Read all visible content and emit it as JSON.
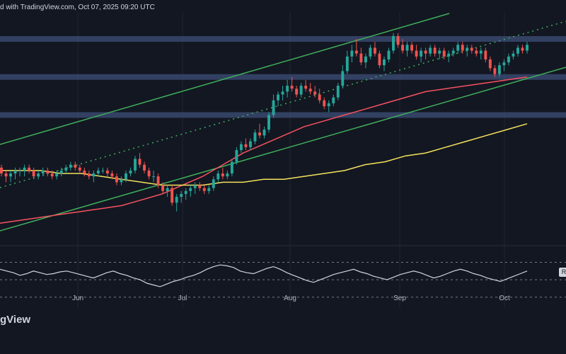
{
  "header": {
    "text": "d with TradingView.com, Oct 07, 2025 09:20 UTC"
  },
  "footer": {
    "brand": "gView"
  },
  "rsi_tag": "R",
  "chart_data": {
    "type": "candlestick",
    "x_ticks": [
      "Jun",
      "Jul",
      "Aug",
      "Sep",
      "Oct"
    ],
    "price_scale": "unlabeled",
    "bull_color": "#26a69a",
    "bear_color": "#ef5350",
    "candles": [
      [
        85,
        86,
        82,
        83
      ],
      [
        83,
        84,
        80,
        82
      ],
      [
        82,
        84,
        80,
        83
      ],
      [
        83,
        85,
        81,
        84
      ],
      [
        84,
        85,
        82,
        84
      ],
      [
        84,
        86,
        82,
        85
      ],
      [
        85,
        86,
        83,
        84
      ],
      [
        84,
        85,
        81,
        82
      ],
      [
        82,
        84,
        81,
        83
      ],
      [
        83,
        85,
        82,
        84
      ],
      [
        84,
        85,
        82,
        83
      ],
      [
        83,
        84,
        81,
        82
      ],
      [
        82,
        84,
        81,
        83
      ],
      [
        83,
        85,
        82,
        84
      ],
      [
        84,
        86,
        83,
        85
      ],
      [
        85,
        87,
        84,
        86
      ],
      [
        86,
        87,
        84,
        85
      ],
      [
        85,
        86,
        83,
        84
      ],
      [
        84,
        85,
        82,
        83
      ],
      [
        83,
        84,
        81,
        82
      ],
      [
        82,
        84,
        80,
        83
      ],
      [
        83,
        85,
        82,
        84
      ],
      [
        84,
        85,
        83,
        84
      ],
      [
        84,
        85,
        82,
        83
      ],
      [
        83,
        84,
        81,
        82
      ],
      [
        82,
        83,
        79,
        80
      ],
      [
        80,
        82,
        79,
        81
      ],
      [
        81,
        84,
        80,
        83
      ],
      [
        83,
        85,
        82,
        84
      ],
      [
        84,
        89,
        83,
        88
      ],
      [
        88,
        90,
        85,
        86
      ],
      [
        86,
        87,
        83,
        84
      ],
      [
        84,
        85,
        81,
        82
      ],
      [
        82,
        84,
        80,
        82
      ],
      [
        82,
        83,
        78,
        79
      ],
      [
        79,
        80,
        76,
        77
      ],
      [
        77,
        79,
        75,
        78
      ],
      [
        78,
        79,
        72,
        73
      ],
      [
        73,
        76,
        70,
        75
      ],
      [
        75,
        77,
        73,
        76
      ],
      [
        76,
        78,
        74,
        77
      ],
      [
        77,
        79,
        75,
        78
      ],
      [
        78,
        80,
        76,
        79
      ],
      [
        79,
        80,
        77,
        78
      ],
      [
        78,
        79,
        76,
        77
      ],
      [
        77,
        79,
        76,
        78
      ],
      [
        78,
        82,
        77,
        81
      ],
      [
        81,
        84,
        80,
        83
      ],
      [
        83,
        85,
        81,
        82
      ],
      [
        82,
        84,
        81,
        83
      ],
      [
        83,
        88,
        82,
        87
      ],
      [
        87,
        92,
        86,
        91
      ],
      [
        91,
        94,
        90,
        93
      ],
      [
        93,
        95,
        91,
        92
      ],
      [
        92,
        95,
        91,
        94
      ],
      [
        94,
        98,
        93,
        97
      ],
      [
        97,
        100,
        95,
        96
      ],
      [
        96,
        99,
        95,
        98
      ],
      [
        98,
        104,
        97,
        103
      ],
      [
        103,
        110,
        102,
        108
      ],
      [
        108,
        111,
        106,
        110
      ],
      [
        110,
        113,
        108,
        111
      ],
      [
        111,
        115,
        109,
        113
      ],
      [
        113,
        116,
        111,
        112
      ],
      [
        112,
        113,
        109,
        110
      ],
      [
        110,
        114,
        109,
        113
      ],
      [
        113,
        115,
        111,
        112
      ],
      [
        112,
        114,
        110,
        111
      ],
      [
        111,
        113,
        109,
        110
      ],
      [
        110,
        112,
        107,
        108
      ],
      [
        108,
        109,
        105,
        106
      ],
      [
        106,
        108,
        104,
        107
      ],
      [
        107,
        110,
        106,
        109
      ],
      [
        109,
        114,
        108,
        113
      ],
      [
        113,
        120,
        112,
        118
      ],
      [
        118,
        125,
        117,
        123
      ],
      [
        123,
        127,
        121,
        125
      ],
      [
        125,
        129,
        123,
        124
      ],
      [
        124,
        126,
        120,
        121
      ],
      [
        121,
        124,
        119,
        123
      ],
      [
        123,
        127,
        122,
        126
      ],
      [
        126,
        128,
        123,
        124
      ],
      [
        124,
        125,
        119,
        120
      ],
      [
        120,
        123,
        118,
        122
      ],
      [
        122,
        126,
        121,
        125
      ],
      [
        125,
        131,
        124,
        130
      ],
      [
        130,
        131,
        126,
        127
      ],
      [
        127,
        129,
        124,
        125
      ],
      [
        125,
        128,
        123,
        127
      ],
      [
        127,
        128,
        124,
        125
      ],
      [
        125,
        127,
        122,
        123
      ],
      [
        123,
        126,
        121,
        125
      ],
      [
        125,
        126,
        122,
        124
      ],
      [
        124,
        127,
        123,
        126
      ],
      [
        126,
        127,
        123,
        124
      ],
      [
        124,
        126,
        122,
        125
      ],
      [
        125,
        126,
        122,
        123
      ],
      [
        123,
        125,
        121,
        124
      ],
      [
        124,
        126,
        123,
        125
      ],
      [
        125,
        128,
        124,
        127
      ],
      [
        127,
        128,
        124,
        125
      ],
      [
        125,
        127,
        123,
        126
      ],
      [
        126,
        127,
        124,
        125
      ],
      [
        125,
        126,
        123,
        124
      ],
      [
        124,
        126,
        122,
        125
      ],
      [
        125,
        126,
        121,
        122
      ],
      [
        122,
        123,
        118,
        119
      ],
      [
        119,
        120,
        116,
        117
      ],
      [
        117,
        121,
        116,
        120
      ],
      [
        120,
        122,
        118,
        121
      ],
      [
        121,
        124,
        120,
        123
      ],
      [
        123,
        125,
        122,
        124
      ],
      [
        124,
        127,
        123,
        126
      ],
      [
        126,
        127,
        124,
        125
      ],
      [
        125,
        128,
        124,
        127
      ]
    ],
    "overlays": [
      {
        "label": "ma-orange",
        "color": "#f7525f",
        "values": [
          66,
          67,
          68,
          69,
          70,
          71,
          72,
          74,
          76,
          79,
          82,
          86,
          90,
          93,
          96,
          99,
          101,
          103,
          105,
          107,
          109,
          111,
          112,
          113,
          114,
          115,
          116
        ]
      },
      {
        "label": "ma-yellow",
        "color": "#f5e25c",
        "values": [
          84,
          84,
          84,
          83,
          83,
          82,
          81,
          80,
          79,
          79,
          79,
          80,
          80,
          81,
          81,
          82,
          83,
          84,
          86,
          87,
          89,
          90,
          92,
          94,
          96,
          98,
          100
        ]
      }
    ],
    "horizontal_zones": [
      {
        "price": 129,
        "color": "#3d4f78"
      },
      {
        "price": 116,
        "color": "#3d4f78"
      },
      {
        "price": 103,
        "color": "#3d4f78"
      }
    ],
    "rsi": {
      "values": [
        62,
        60,
        58,
        55,
        57,
        60,
        58,
        56,
        57,
        59,
        60,
        58,
        56,
        54,
        52,
        55,
        58,
        60,
        57,
        55,
        52,
        50,
        46,
        44,
        42,
        45,
        48,
        50,
        53,
        55,
        58,
        62,
        65,
        67,
        66,
        64,
        60,
        58,
        57,
        60,
        63,
        65,
        62,
        58,
        55,
        52,
        49,
        47,
        50,
        53,
        56,
        58,
        60,
        62,
        59,
        57,
        54,
        52,
        50,
        53,
        56,
        58,
        60,
        58,
        55,
        52,
        54,
        57,
        60,
        62,
        60,
        57,
        55,
        52,
        50,
        48,
        51,
        54,
        57,
        60
      ],
      "levels": [
        70,
        50,
        30
      ],
      "ylim": [
        20,
        85
      ]
    }
  }
}
